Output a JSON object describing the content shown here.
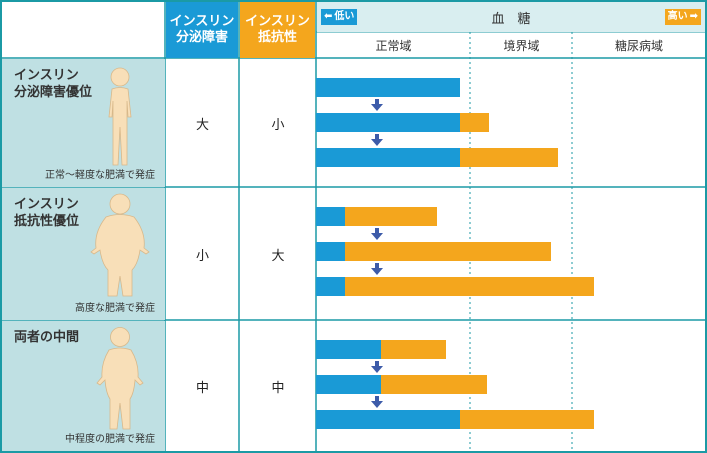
{
  "header": {
    "col1": "インスリン\n分泌障害",
    "col2": "インスリン\n抵抗性",
    "blood_sugar": "血　糖",
    "low_label": "低い",
    "high_label": "高い",
    "zones": [
      "正常域",
      "境界域",
      "糖尿病域"
    ]
  },
  "rows": [
    {
      "title": "インスリン\n分泌障害優位",
      "note": "正常～軽度な肥満で発症",
      "secretion": "大",
      "resistance": "小",
      "figure": "slim-person",
      "bars": [
        {
          "blue": 1.0,
          "orange": 0.0
        },
        {
          "blue": 1.0,
          "orange": 0.2
        },
        {
          "blue": 1.0,
          "orange": 0.68
        }
      ]
    },
    {
      "title": "インスリン\n抵抗性優位",
      "note": "高度な肥満で発症",
      "secretion": "小",
      "resistance": "大",
      "figure": "obese-person",
      "bars": [
        {
          "blue": 0.2,
          "orange": 0.64
        },
        {
          "blue": 0.2,
          "orange": 1.43
        },
        {
          "blue": 0.2,
          "orange": 1.73
        }
      ]
    },
    {
      "title": "両者の中間",
      "note": "中程度の肥満で発症",
      "secretion": "中",
      "resistance": "中",
      "figure": "medium-person",
      "bars": [
        {
          "blue": 0.45,
          "orange": 0.45
        },
        {
          "blue": 0.45,
          "orange": 0.74
        },
        {
          "blue": 1.0,
          "orange": 0.93
        }
      ]
    }
  ],
  "colors": {
    "secretion": "#1a9ad6",
    "resistance": "#f4a61d",
    "label_bg": "#bfe0e3",
    "grid": "#1b9aa5",
    "arrow": "#3d5ba9",
    "skin": "#f8dfb8"
  }
}
